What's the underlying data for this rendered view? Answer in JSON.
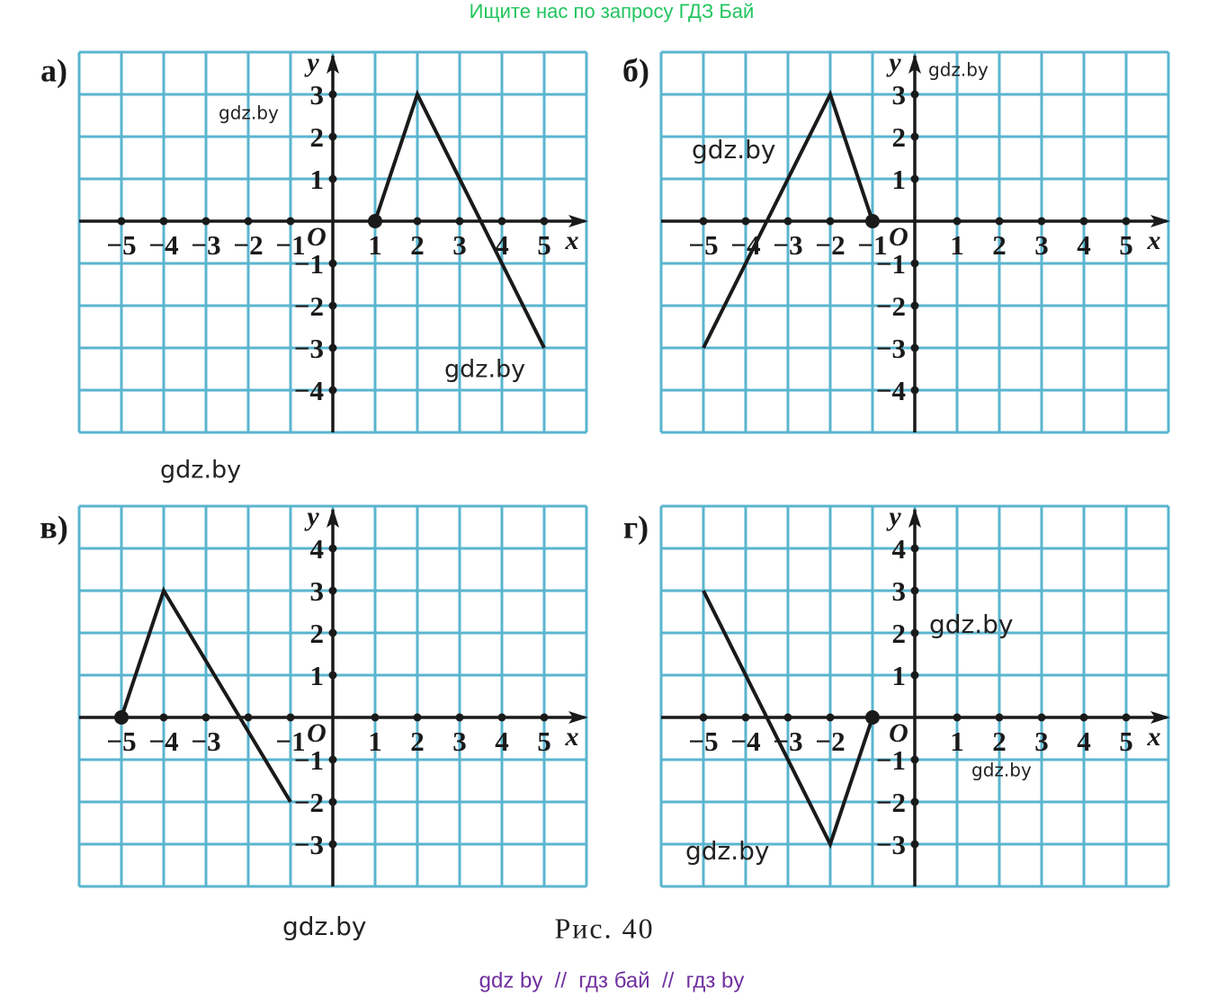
{
  "header": "Ищите нас по запросу ГДЗ Бай",
  "caption": "Рис. 40",
  "footer": "gdz by  //  гдз бай  //  гдз by",
  "watermarks": [
    "gdz.by",
    "gdz.by",
    "gdz.by",
    "gdz.by",
    "gdz.by",
    "gdz.by",
    "gdz.by",
    "gdz.by",
    "gdz.by"
  ],
  "chart_data": [
    {
      "type": "line",
      "title": "а)",
      "x_label": "x",
      "y_label": "y",
      "origin_label": "O",
      "x": [
        1,
        2,
        5
      ],
      "y": [
        0,
        3,
        -3
      ],
      "dot": {
        "x": 1,
        "y": 0
      },
      "color": "#1a1a1a",
      "grid": true,
      "xlim": [
        -6,
        6
      ],
      "ylim": [
        -5,
        4
      ],
      "xticks": [
        {
          "value": -5,
          "label": "−5"
        },
        {
          "value": -4,
          "label": "−4"
        },
        {
          "value": -3,
          "label": "−3"
        },
        {
          "value": -2,
          "label": "−2"
        },
        {
          "value": -1,
          "label": "−1"
        },
        1,
        2,
        3,
        4,
        5
      ],
      "yticks": [
        {
          "value": -4,
          "label": "−4"
        },
        {
          "value": -3,
          "label": "−3"
        },
        {
          "value": -2,
          "label": "−2"
        },
        {
          "value": -1,
          "label": "−1"
        },
        1,
        2,
        3
      ]
    },
    {
      "type": "line",
      "title": "б)",
      "x_label": "x",
      "y_label": "y",
      "origin_label": "O",
      "x": [
        -5,
        -2,
        -1
      ],
      "y": [
        -3,
        3,
        0
      ],
      "dot": {
        "x": -1,
        "y": 0
      },
      "color": "#1a1a1a",
      "grid": true,
      "xlim": [
        -6,
        6
      ],
      "ylim": [
        -5,
        4
      ],
      "xticks": [
        {
          "value": -5,
          "label": "−5"
        },
        {
          "value": -4,
          "label": "−4"
        },
        {
          "value": -3,
          "label": "−3"
        },
        {
          "value": -2,
          "label": "−2"
        },
        {
          "value": -1,
          "label": "−1"
        },
        1,
        2,
        3,
        4,
        5
      ],
      "yticks": [
        {
          "value": -4,
          "label": "−4"
        },
        {
          "value": -3,
          "label": "−3"
        },
        {
          "value": -2,
          "label": "−2"
        },
        {
          "value": -1,
          "label": "−1"
        },
        1,
        2,
        3
      ]
    },
    {
      "type": "line",
      "title": "в)",
      "x_label": "x",
      "y_label": "y",
      "origin_label": "O",
      "x": [
        -5,
        -4,
        -1
      ],
      "y": [
        0,
        3,
        -2
      ],
      "dot": {
        "x": -5,
        "y": 0
      },
      "color": "#1a1a1a",
      "grid": true,
      "xlim": [
        -6,
        6
      ],
      "ylim": [
        -4,
        5
      ],
      "xticks": [
        {
          "value": -5,
          "label": "−5"
        },
        {
          "value": -4,
          "label": "−4"
        },
        {
          "value": -3,
          "label": "−3"
        },
        {
          "value": -1,
          "label": "−1"
        },
        1,
        2,
        3,
        4,
        5
      ],
      "yticks": [
        {
          "value": -3,
          "label": "−3"
        },
        {
          "value": -2,
          "label": "−2"
        },
        {
          "value": -1,
          "label": "−1"
        },
        1,
        2,
        3,
        4
      ]
    },
    {
      "type": "line",
      "title": "г)",
      "x_label": "x",
      "y_label": "y",
      "origin_label": "O",
      "x": [
        -5,
        -2,
        -1
      ],
      "y": [
        3,
        -3,
        0
      ],
      "dot": {
        "x": -1,
        "y": 0
      },
      "color": "#1a1a1a",
      "grid": true,
      "xlim": [
        -6,
        6
      ],
      "ylim": [
        -4,
        5
      ],
      "xticks": [
        {
          "value": -5,
          "label": "−5"
        },
        {
          "value": -4,
          "label": "−4"
        },
        {
          "value": -3,
          "label": "−3"
        },
        {
          "value": -2,
          "label": "−2"
        },
        1,
        2,
        3,
        4,
        5
      ],
      "yticks": [
        {
          "value": -3,
          "label": "−3"
        },
        {
          "value": -2,
          "label": "−2"
        },
        {
          "value": -1,
          "label": "−1"
        },
        1,
        2,
        3,
        4
      ]
    }
  ]
}
